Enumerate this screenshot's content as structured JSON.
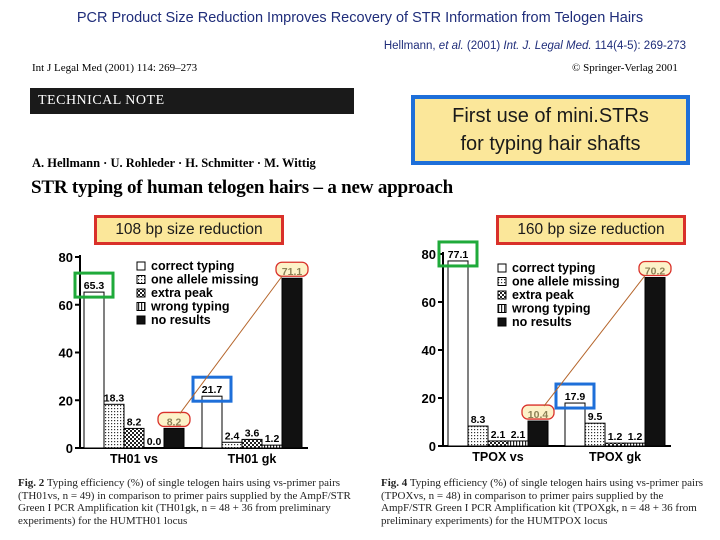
{
  "slide": {
    "title": "PCR Product Size Reduction Improves Recovery of STR Information from Telogen Hairs",
    "citation_prefix": "Hellmann, ",
    "citation_etal": "et al.",
    "citation_year": " (2001) ",
    "citation_journal": "Int. J. Legal Med.",
    "citation_pages": " 114(4-5): 269-273"
  },
  "paper": {
    "journal_ref": "Int J Legal Med (2001) 114: 269–273",
    "publisher": "© Springer-Verlag 2001",
    "section_label": "TECHNICAL NOTE",
    "authors": "A. Hellmann · U. Rohleder · H. Schmitter · M. Wittig",
    "title": "STR typing of human telogen hairs – a new approach"
  },
  "callouts": {
    "main_line1": "First use of mini.STRs",
    "main_line2": "for typing hair shafts",
    "left_label": "108 bp size reduction",
    "right_label": "160 bp size reduction"
  },
  "legend": [
    "correct typing",
    "one allele missing",
    "extra peak",
    "wrong typing",
    "no results"
  ],
  "chart_data": [
    {
      "type": "bar",
      "categories": [
        "TH01 vs",
        "TH01 gk"
      ],
      "series": [
        {
          "name": "correct typing",
          "values": [
            65.3,
            21.7
          ]
        },
        {
          "name": "one allele missing",
          "values": [
            18.3,
            2.4
          ]
        },
        {
          "name": "extra peak",
          "values": [
            8.2,
            3.6
          ]
        },
        {
          "name": "wrong typing",
          "values": [
            0.0,
            1.2
          ]
        },
        {
          "name": "no results",
          "values": [
            8.2,
            71.1
          ]
        }
      ],
      "yticks": [
        0,
        20,
        40,
        60,
        80
      ],
      "ylim": [
        0,
        80
      ],
      "data_labels": [
        [
          "65.3",
          "18.3",
          "8.2",
          "0.0",
          "8.2"
        ],
        [
          "21.7",
          "2.4",
          "3.6",
          "1.2",
          "71.1"
        ]
      ]
    },
    {
      "type": "bar",
      "categories": [
        "TPOX vs",
        "TPOX gk"
      ],
      "series": [
        {
          "name": "correct typing",
          "values": [
            77.1,
            17.9
          ]
        },
        {
          "name": "one allele missing",
          "values": [
            8.3,
            9.5
          ]
        },
        {
          "name": "extra peak",
          "values": [
            2.1,
            1.2
          ]
        },
        {
          "name": "wrong typing",
          "values": [
            2.1,
            1.2
          ]
        },
        {
          "name": "no results",
          "values": [
            10.4,
            70.2
          ]
        }
      ],
      "yticks": [
        0,
        20,
        40,
        60,
        80
      ],
      "ylim": [
        0,
        80
      ],
      "data_labels": [
        [
          "77.1",
          "8.3",
          "2.1",
          "2.1",
          "10.4"
        ],
        [
          "17.9",
          "9.5",
          "1.2",
          "1.2",
          "70.2"
        ]
      ]
    }
  ],
  "captions": {
    "left_fig": "Fig. 2",
    "left_text": " Typing efficiency (%) of single telogen hairs using vs-primer pairs (TH01vs, n = 49) in comparison to primer pairs supplied by the AmpF/STR Green I PCR Amplification kit (TH01gk, n = 48 + 36 from preliminary experiments) for the HUMTH01 locus",
    "right_fig": "Fig. 4",
    "right_text": " Typing efficiency (%) of single telogen hairs using vs-primer pairs (TPOXvs, n = 48) in comparison to primer pairs supplied by the AmpF/STR Green I PCR Amplification kit (TPOXgk, n = 48 + 36 from preliminary experiments) for the HUMTPOX locus"
  },
  "colors": {
    "title_blue": "#1f2d7a",
    "highlight_yellow": "#fbe79a",
    "box_blue": "#1e6fd9",
    "box_red": "#d9302a",
    "box_green": "#1faa3a",
    "line_brown": "#b5652b"
  }
}
